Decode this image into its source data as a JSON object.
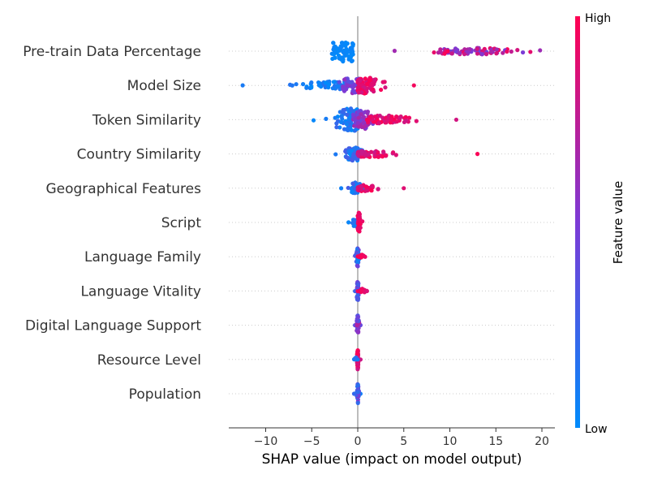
{
  "chart_data": {
    "type": "scatter",
    "subtype": "shap-beeswarm",
    "xlabel": "SHAP value (impact on model output)",
    "xlim": [
      -14,
      21.5
    ],
    "xticks": [
      -10,
      -5,
      0,
      5,
      10,
      15,
      20
    ],
    "xtick_labels": [
      "−10",
      "−5",
      "0",
      "5",
      "10",
      "15",
      "20"
    ],
    "zero_line": true,
    "colorbar": {
      "title": "Feature value",
      "high_label": "High",
      "low_label": "Low",
      "low_color": "#008bfb",
      "high_color": "#ff0052",
      "mid_color": "#7c3ad6"
    },
    "features": [
      {
        "name": "Pre-train Data Percentage",
        "clusters": [
          {
            "x_min": -2.8,
            "x_max": -0.5,
            "center": -1.5,
            "width": 2.6,
            "spread": 14,
            "weight": 60,
            "v_lo": 0.0,
            "v_hi": 0.05
          },
          {
            "x_min": 4.0,
            "x_max": 19.8,
            "center": 12.5,
            "width": 5.0,
            "spread": 4,
            "weight": 90,
            "v_lo": 0.45,
            "v_hi": 1.0
          }
        ]
      },
      {
        "name": "Model Size",
        "clusters": [
          {
            "x_min": -12.5,
            "x_max": -1.0,
            "center": -2.5,
            "width": 4.0,
            "spread": 5,
            "weight": 60,
            "v_lo": 0.0,
            "v_hi": 0.15
          },
          {
            "x_min": -2.0,
            "x_max": 0.5,
            "center": -0.6,
            "width": 1.6,
            "spread": 10,
            "weight": 45,
            "v_lo": 0.35,
            "v_hi": 0.6
          },
          {
            "x_min": 0.0,
            "x_max": 6.1,
            "center": 0.9,
            "width": 1.8,
            "spread": 10,
            "weight": 70,
            "v_lo": 0.8,
            "v_hi": 1.0
          }
        ]
      },
      {
        "name": "Token Similarity",
        "clusters": [
          {
            "x_min": -4.8,
            "x_max": 0.0,
            "center": -0.8,
            "width": 2.0,
            "spread": 14,
            "weight": 90,
            "v_lo": 0.0,
            "v_hi": 0.25
          },
          {
            "x_min": -0.5,
            "x_max": 2.0,
            "center": 0.5,
            "width": 1.2,
            "spread": 12,
            "weight": 60,
            "v_lo": 0.4,
            "v_hi": 0.7
          },
          {
            "x_min": 1.0,
            "x_max": 10.7,
            "center": 3.0,
            "width": 3.0,
            "spread": 5,
            "weight": 60,
            "v_lo": 0.8,
            "v_hi": 1.0
          }
        ]
      },
      {
        "name": "Country Similarity",
        "clusters": [
          {
            "x_min": -2.4,
            "x_max": 0.5,
            "center": -0.3,
            "width": 1.0,
            "spread": 9,
            "weight": 70,
            "v_lo": 0.0,
            "v_hi": 0.3
          },
          {
            "x_min": 0.0,
            "x_max": 13.0,
            "center": 1.5,
            "width": 2.5,
            "spread": 4,
            "weight": 60,
            "v_lo": 0.75,
            "v_hi": 1.0
          }
        ]
      },
      {
        "name": "Geographical Features",
        "clusters": [
          {
            "x_min": -1.8,
            "x_max": 0.5,
            "center": -0.2,
            "width": 0.6,
            "spread": 7,
            "weight": 45,
            "v_lo": 0.0,
            "v_hi": 0.3
          },
          {
            "x_min": 0.0,
            "x_max": 5.0,
            "center": 0.8,
            "width": 1.2,
            "spread": 4,
            "weight": 35,
            "v_lo": 0.8,
            "v_hi": 1.0
          }
        ]
      },
      {
        "name": "Script",
        "clusters": [
          {
            "x_min": -1.0,
            "x_max": 0.0,
            "center": -0.3,
            "width": 0.3,
            "spread": 5,
            "weight": 20,
            "v_lo": 0.0,
            "v_hi": 0.2
          },
          {
            "x_min": 0.0,
            "x_max": 0.5,
            "center": 0.15,
            "width": 0.2,
            "spread": 12,
            "weight": 45,
            "v_lo": 0.85,
            "v_hi": 1.0
          }
        ]
      },
      {
        "name": "Language Family",
        "clusters": [
          {
            "x_min": -0.3,
            "x_max": 0.3,
            "center": 0.0,
            "width": 0.15,
            "spread": 12,
            "weight": 40,
            "v_lo": 0.0,
            "v_hi": 0.5
          },
          {
            "x_min": 0.0,
            "x_max": 0.8,
            "center": 0.35,
            "width": 0.25,
            "spread": 3,
            "weight": 12,
            "v_lo": 0.85,
            "v_hi": 1.0
          }
        ]
      },
      {
        "name": "Language Vitality",
        "clusters": [
          {
            "x_min": -0.3,
            "x_max": 0.3,
            "center": 0.0,
            "width": 0.12,
            "spread": 12,
            "weight": 40,
            "v_lo": 0.2,
            "v_hi": 0.55
          },
          {
            "x_min": 0.0,
            "x_max": 1.0,
            "center": 0.45,
            "width": 0.3,
            "spread": 3,
            "weight": 14,
            "v_lo": 0.85,
            "v_hi": 1.0
          }
        ]
      },
      {
        "name": "Digital Language Support",
        "clusters": [
          {
            "x_min": -0.3,
            "x_max": 0.3,
            "center": 0.0,
            "width": 0.12,
            "spread": 12,
            "weight": 45,
            "v_lo": 0.25,
            "v_hi": 0.7
          }
        ]
      },
      {
        "name": "Resource Level",
        "clusters": [
          {
            "x_min": -0.3,
            "x_max": 0.3,
            "center": 0.0,
            "width": 0.1,
            "spread": 12,
            "weight": 40,
            "v_lo": 0.8,
            "v_hi": 1.0
          },
          {
            "x_min": -0.4,
            "x_max": 0.0,
            "center": -0.2,
            "width": 0.1,
            "spread": 4,
            "weight": 6,
            "v_lo": 0.0,
            "v_hi": 0.2
          }
        ]
      },
      {
        "name": "Population",
        "clusters": [
          {
            "x_min": -0.4,
            "x_max": 0.3,
            "center": 0.0,
            "width": 0.1,
            "spread": 12,
            "weight": 45,
            "v_lo": 0.0,
            "v_hi": 0.6
          }
        ]
      }
    ]
  }
}
